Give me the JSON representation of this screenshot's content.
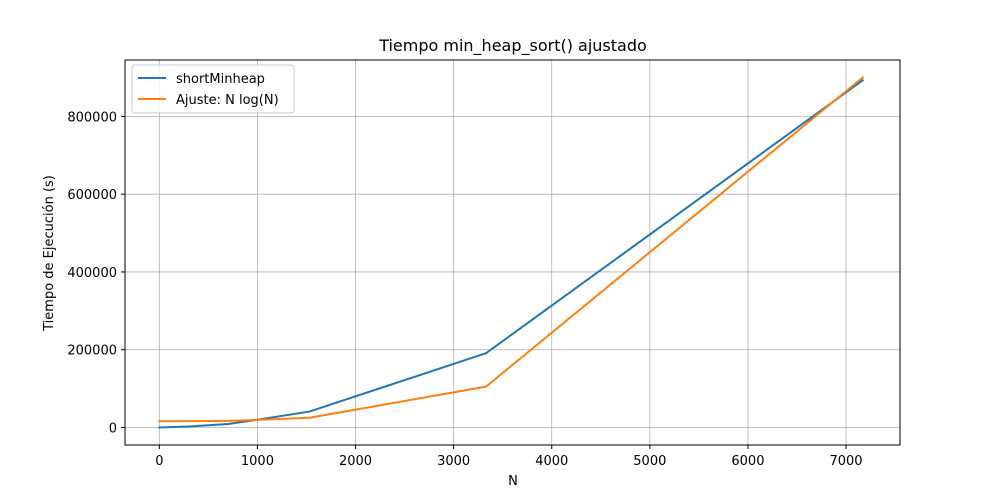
{
  "chart_data": {
    "type": "line",
    "title": "Tiempo min_heap_sort() ajustado",
    "xlabel": "N",
    "ylabel": "Tiempo de Ejecución (s)",
    "xlim": [
      -350,
      7550
    ],
    "ylim": [
      -45000,
      945000
    ],
    "xticks": [
      0,
      1000,
      2000,
      3000,
      4000,
      5000,
      6000,
      7000
    ],
    "yticks": [
      0,
      200000,
      400000,
      600000,
      800000
    ],
    "grid": true,
    "legend_position": "top-left",
    "series": [
      {
        "name": "shortMinheap",
        "color": "#1f77b4",
        "x": [
          0,
          300,
          700,
          1000,
          1530,
          3330,
          7170
        ],
        "y": [
          0,
          2500,
          9000,
          20000,
          41000,
          191000,
          893000
        ]
      },
      {
        "name": "Ajuste: N log(N)",
        "color": "#ff7f0e",
        "x": [
          0,
          300,
          700,
          1000,
          1530,
          3330,
          7170
        ],
        "y": [
          16000,
          16300,
          17000,
          19500,
          25000,
          105000,
          900000
        ]
      }
    ]
  }
}
